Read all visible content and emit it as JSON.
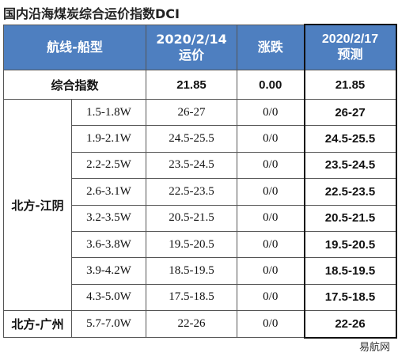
{
  "title": "国内沿海煤炭综合运价指数DCI",
  "table": {
    "header": [
      [
        "航线-船型"
      ],
      [
        "2020/2/14",
        "运价"
      ],
      [
        "涨跌"
      ],
      [
        "2020/2/17",
        "预测"
      ]
    ],
    "summary": [
      "综合指数",
      "21.85",
      "0.00",
      "21.85"
    ],
    "groups": [
      {
        "route": "北方-江阴",
        "rows": [
          [
            "1.5-1.8W",
            "26-27",
            "0/0",
            "26-27"
          ],
          [
            "1.9-2.1W",
            "24.5-25.5",
            "0/0",
            "24.5-25.5"
          ],
          [
            "2.2-2.5W",
            "23.5-24.5",
            "0/0",
            "23.5-24.5"
          ],
          [
            "2.6-3.1W",
            "22.5-23.5",
            "0/0",
            "22.5-23.5"
          ],
          [
            "3.2-3.5W",
            "20.5-21.5",
            "0/0",
            "20.5-21.5"
          ],
          [
            "3.6-3.8W",
            "19.5-20.5",
            "0/0",
            "19.5-20.5"
          ],
          [
            "3.9-4.2W",
            "18.5-19.5",
            "0/0",
            "18.5-19.5"
          ],
          [
            "4.3-5.0W",
            "17.5-18.5",
            "0/0",
            "17.5-18.5"
          ]
        ]
      },
      {
        "route": "北方-广州",
        "rows": [
          [
            "5.7-7.0W",
            "22-26",
            "0/0",
            "22-26"
          ]
        ]
      }
    ]
  },
  "watermark": "易航网"
}
